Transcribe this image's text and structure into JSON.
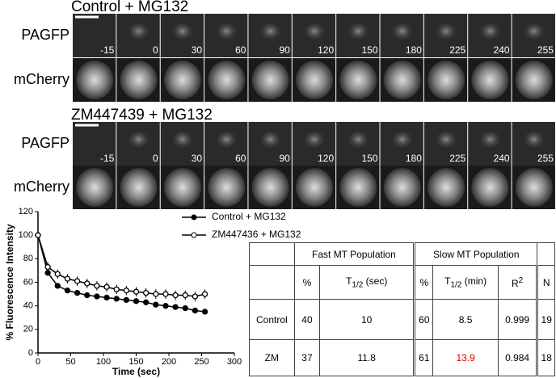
{
  "panels": [
    {
      "title": "Control + MG132",
      "rows": [
        "PAGFP",
        "mCherry"
      ],
      "frames": [
        -15,
        0,
        30,
        60,
        90,
        120,
        150,
        180,
        225,
        240,
        255
      ]
    },
    {
      "title": "ZM447439 + MG132",
      "rows": [
        "PAGFP",
        "mCherry"
      ],
      "frames": [
        -15,
        0,
        30,
        60,
        90,
        120,
        150,
        180,
        225,
        240,
        255
      ]
    }
  ],
  "chart_data": {
    "type": "line",
    "y_label": "% Fluorescence Intensity",
    "x_label": "Time (sec)",
    "x": [
      0,
      15,
      30,
      45,
      60,
      75,
      90,
      105,
      120,
      135,
      150,
      165,
      180,
      195,
      210,
      225,
      240,
      255
    ],
    "series": [
      {
        "name": "Control + MG132",
        "color": "#000000",
        "marker": "filled",
        "values": [
          100,
          68,
          57,
          53,
          51,
          49,
          48,
          47,
          46,
          45,
          44,
          43,
          41,
          40,
          39,
          38,
          36,
          35
        ],
        "errors": [
          2,
          2,
          2,
          2,
          2,
          2,
          2,
          2,
          2,
          2,
          2,
          2,
          2,
          2,
          2,
          2,
          2,
          2
        ]
      },
      {
        "name": "ZM447436 + MG132",
        "color": "#000000",
        "marker": "open",
        "values": [
          100,
          73,
          67,
          63,
          61,
          59,
          57,
          56,
          54,
          53,
          52,
          51,
          50,
          50,
          49,
          49,
          48,
          50
        ],
        "errors": [
          3,
          4,
          4,
          4,
          4,
          4,
          4,
          4,
          4,
          4,
          4,
          4,
          4,
          4,
          4,
          4,
          4,
          4
        ]
      }
    ],
    "xlim": [
      0,
      300
    ],
    "xticks": [
      0,
      50,
      100,
      150,
      200,
      250,
      300
    ],
    "ylim": [
      0,
      120
    ],
    "yticks": [
      0,
      20,
      40,
      60,
      80,
      100,
      120
    ],
    "legend": "top-right"
  },
  "table": {
    "groups": [
      "Fast MT Population",
      "Slow MT Population"
    ],
    "columns": [
      {
        "text": "%"
      },
      {
        "text": "T",
        "sub": "1/2",
        "after": " (sec)"
      },
      {
        "text": "%"
      },
      {
        "text": "T",
        "sub": "1/2",
        "after": " (min)"
      },
      {
        "text": "R",
        "sup": "2"
      },
      {
        "text": "N"
      }
    ],
    "rows": [
      [
        "Control",
        40,
        10,
        60,
        8.5,
        0.999,
        19
      ],
      [
        "ZM",
        37,
        11.8,
        61,
        13.9,
        0.984,
        18
      ]
    ],
    "highlight_color": "#e00000"
  }
}
